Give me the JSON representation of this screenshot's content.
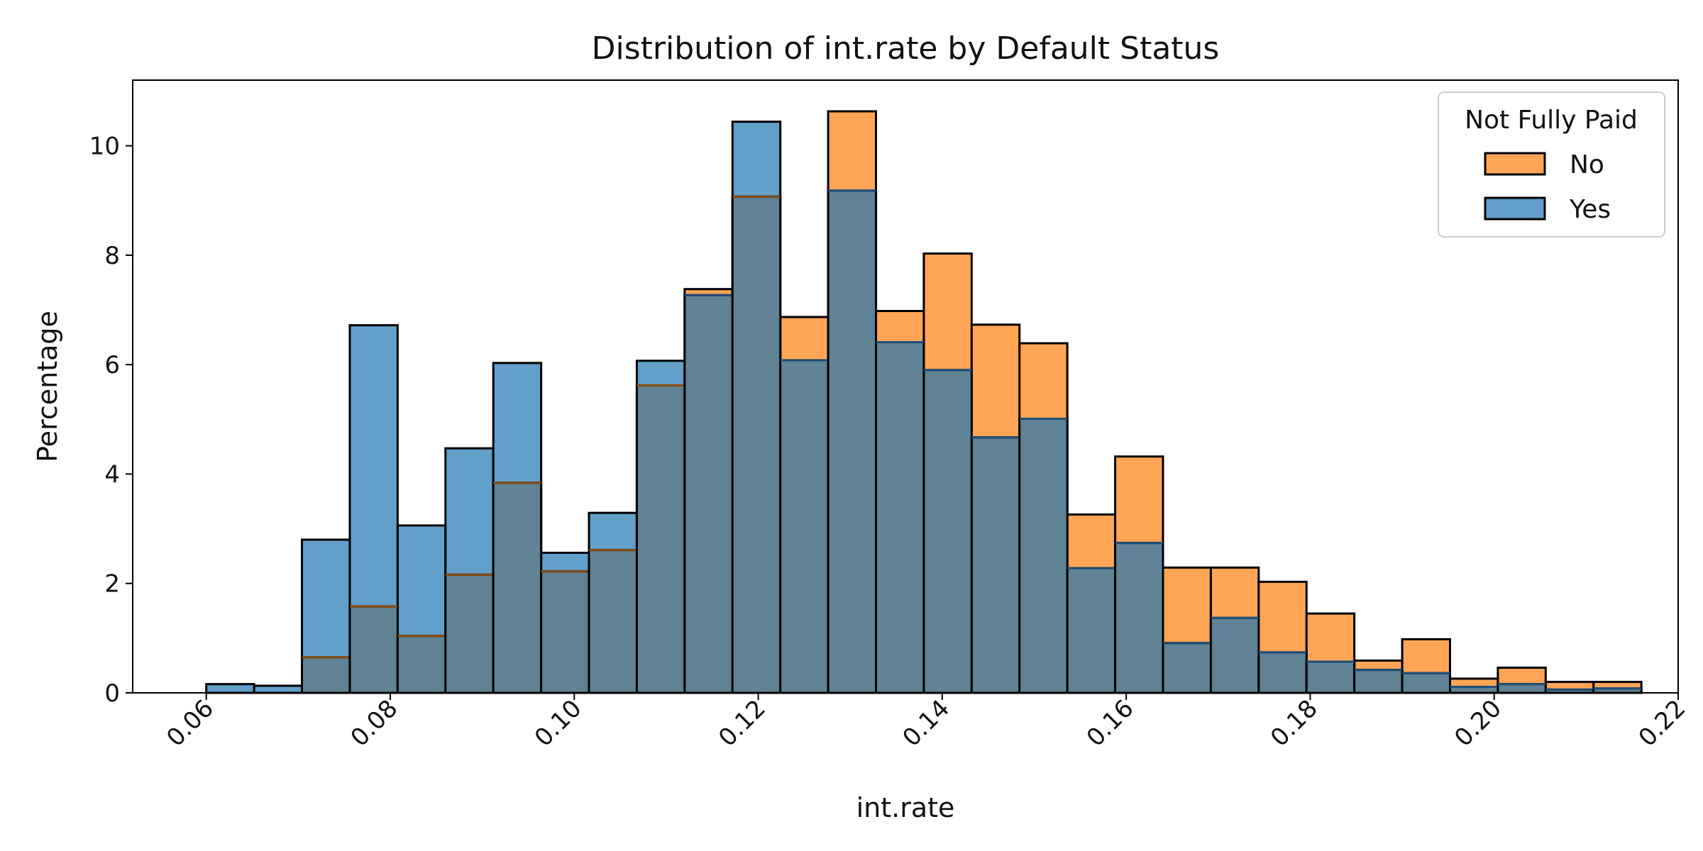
{
  "chart_data": {
    "type": "bar",
    "subtype": "overlapping-histogram",
    "title": "Distribution of int.rate by Default Status",
    "xlabel": "int.rate",
    "ylabel": "Percentage",
    "xlim": [
      0.052,
      0.22
    ],
    "ylim": [
      0,
      11.2
    ],
    "xticks": [
      "0.06",
      "0.08",
      "0.10",
      "0.12",
      "0.14",
      "0.16",
      "0.18",
      "0.20",
      "0.22"
    ],
    "yticks": [
      "0",
      "2",
      "4",
      "6",
      "8",
      "10"
    ],
    "grid": false,
    "legend": {
      "title": "Not Fully Paid",
      "placement": "top-right",
      "entries": [
        {
          "label": "No",
          "color": "#ff7f0e"
        },
        {
          "label": "Yes",
          "color": "#1f77b4"
        }
      ]
    },
    "bin_edges": [
      0.06,
      0.0652,
      0.0704,
      0.0756,
      0.0808,
      0.086,
      0.0912,
      0.0964,
      0.1016,
      0.1068,
      0.112,
      0.1172,
      0.1224,
      0.1276,
      0.1328,
      0.138,
      0.1432,
      0.1484,
      0.1536,
      0.1588,
      0.164,
      0.1692,
      0.1744,
      0.1796,
      0.1848,
      0.19,
      0.1952,
      0.2004,
      0.2056,
      0.2108,
      0.216
    ],
    "series": [
      {
        "name": "No",
        "color": "#ff7f0e",
        "values": [
          0.0,
          0.0,
          0.65,
          1.58,
          1.04,
          2.16,
          3.84,
          2.22,
          2.61,
          5.62,
          7.38,
          9.07,
          6.87,
          10.63,
          6.98,
          8.03,
          6.73,
          6.39,
          3.26,
          4.32,
          2.29,
          2.29,
          2.03,
          1.45,
          0.59,
          0.98,
          0.26,
          0.46,
          0.2,
          0.2
        ]
      },
      {
        "name": "Yes",
        "color": "#1f77b4",
        "values": [
          0.16,
          0.13,
          2.8,
          6.72,
          3.06,
          4.47,
          6.03,
          2.56,
          3.29,
          6.07,
          7.27,
          10.44,
          6.08,
          9.18,
          6.41,
          5.9,
          4.67,
          5.01,
          2.28,
          2.74,
          0.91,
          1.37,
          0.74,
          0.57,
          0.42,
          0.36,
          0.11,
          0.16,
          0.06,
          0.08
        ]
      }
    ]
  }
}
